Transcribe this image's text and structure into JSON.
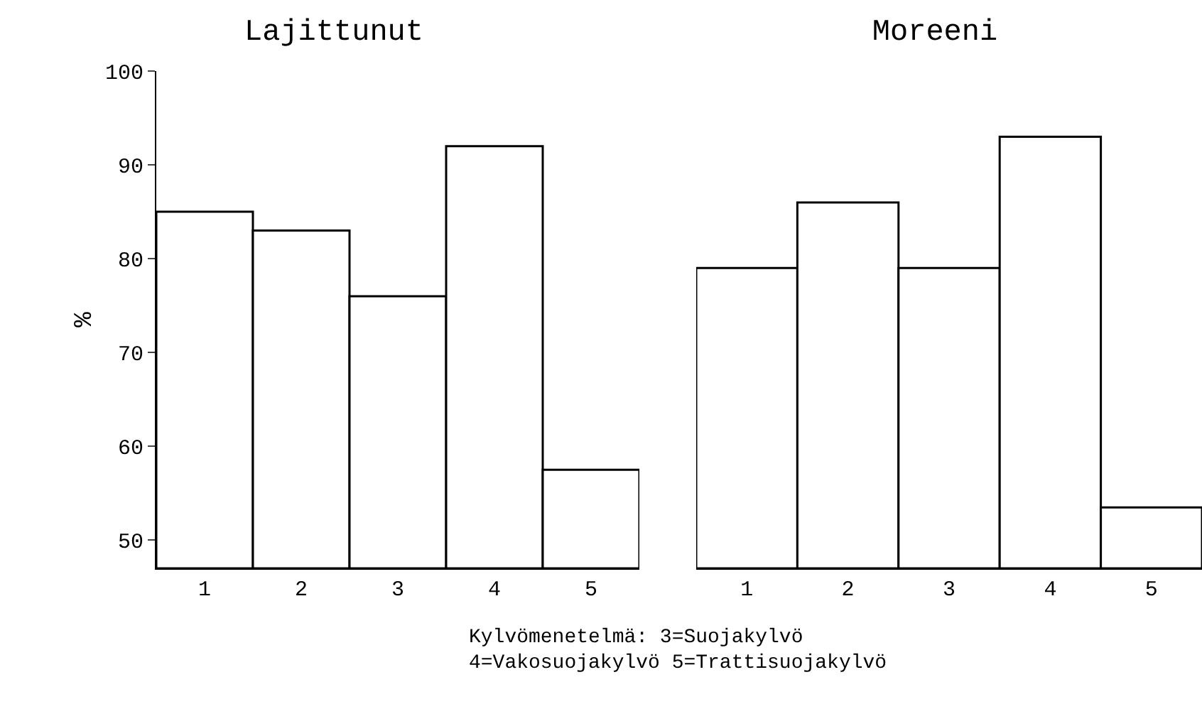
{
  "chart_data": [
    {
      "type": "bar",
      "title": "Lajittunut",
      "ylabel": "%",
      "categories": [
        "1",
        "2",
        "3",
        "4",
        "5"
      ],
      "values": [
        85,
        83,
        76,
        92,
        57.5
      ],
      "color": "#ffffff",
      "ylim": [
        47,
        100
      ],
      "yticks": [
        50,
        60,
        70,
        80,
        90,
        100
      ],
      "grid": false,
      "legend": false,
      "annotations": [
        "Kylvömenetelmä: 3=Suojakylvö",
        "4=Vakosuojakylvö 5=Trattisuojakylvö"
      ]
    },
    {
      "type": "bar",
      "title": "Moreeni",
      "categories": [
        "1",
        "2",
        "3",
        "4",
        "5"
      ],
      "values": [
        79,
        86,
        79,
        93,
        53.5
      ],
      "color": "#ffffff",
      "ylim": [
        47,
        100
      ],
      "yticks": [
        50,
        60,
        70,
        80,
        90,
        100
      ],
      "grid": false,
      "legend": false,
      "tick_labels": "x"
    }
  ]
}
